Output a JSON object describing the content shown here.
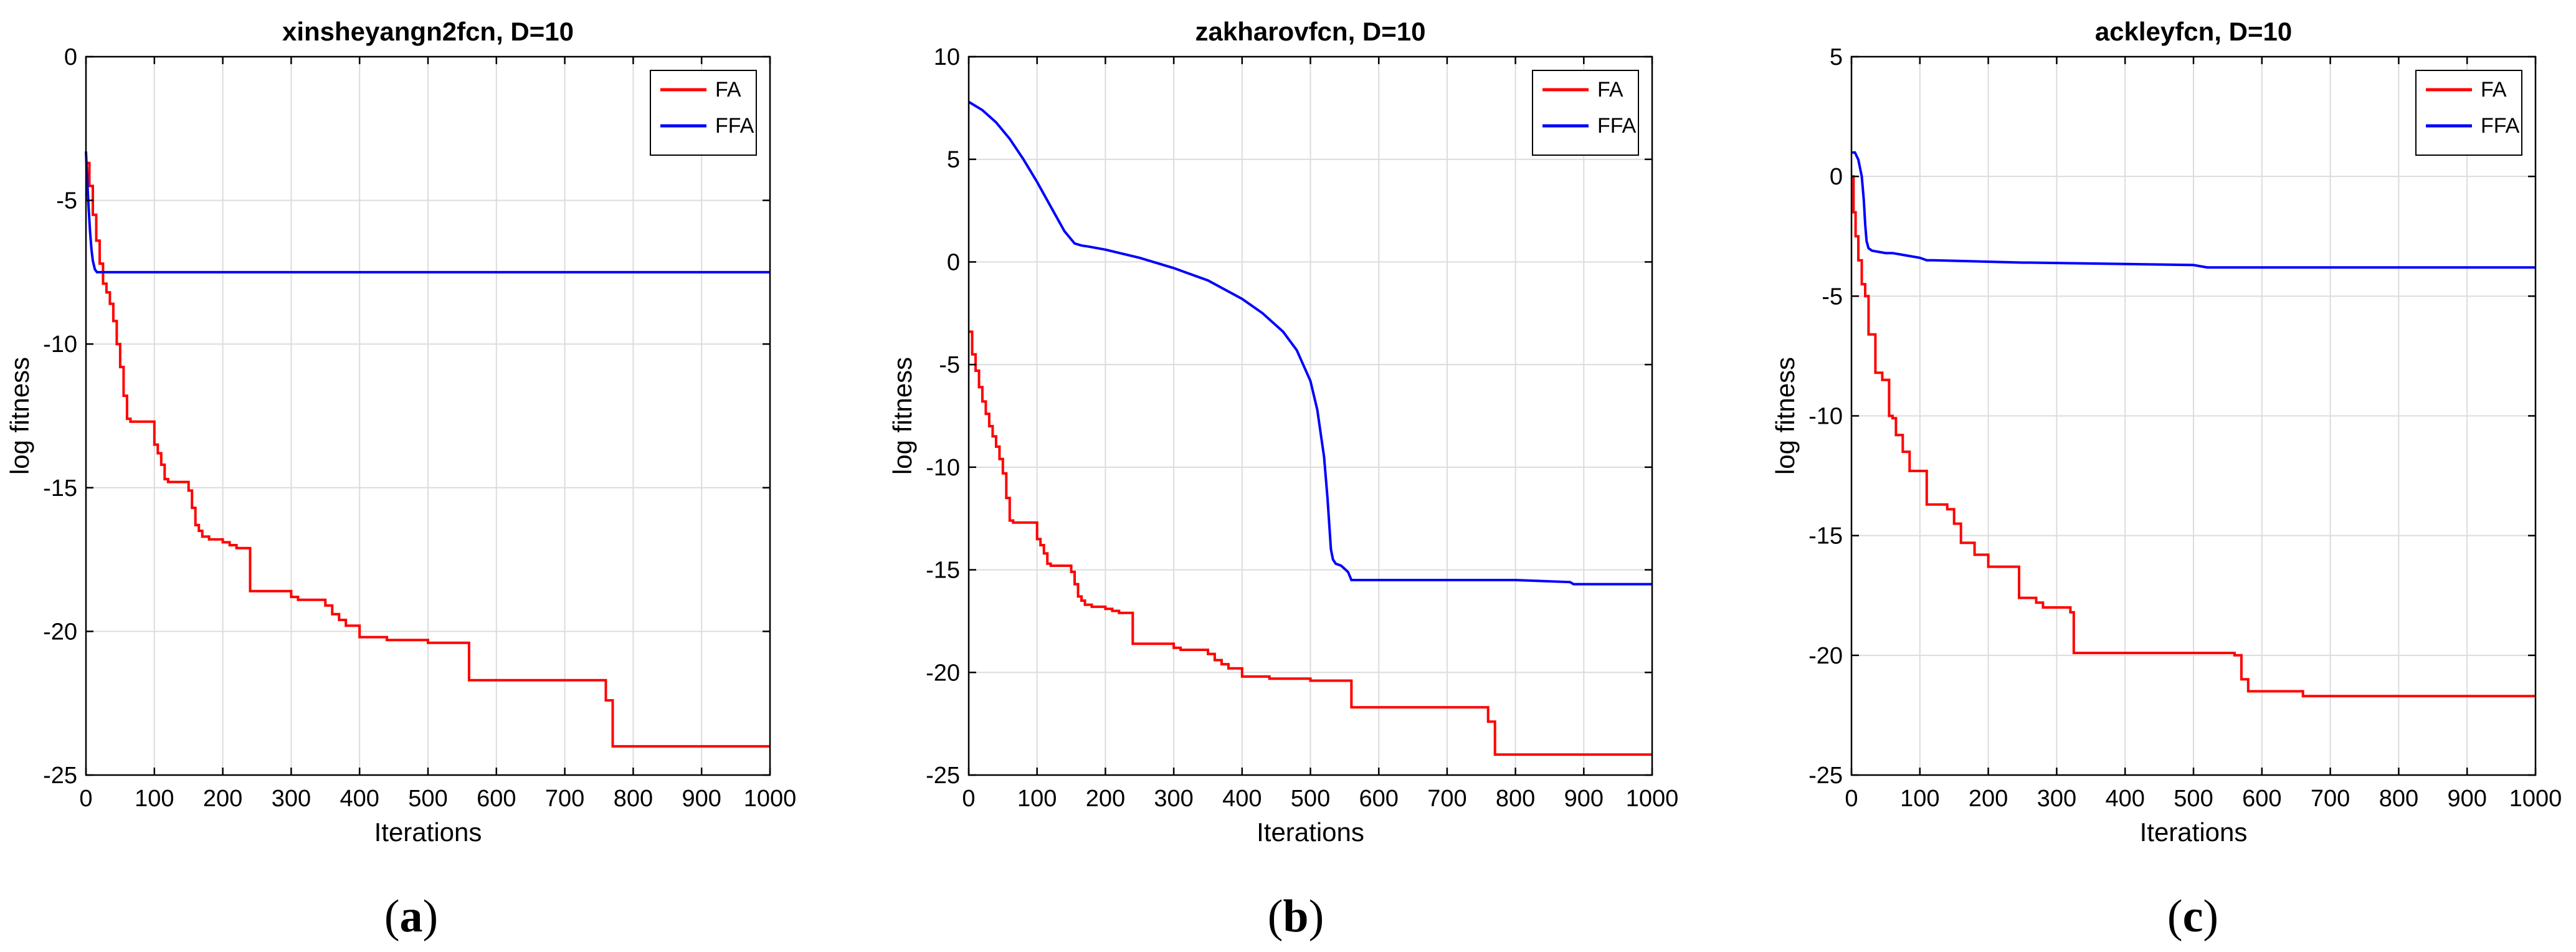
{
  "chart_data": [
    {
      "type": "line",
      "title": "xinsheyangn2fcn, D=10",
      "xlabel": "Iterations",
      "ylabel": "log fitness",
      "xlim": [
        0,
        1000
      ],
      "ylim": [
        -25,
        0
      ],
      "xticks": [
        0,
        100,
        200,
        300,
        400,
        500,
        600,
        700,
        800,
        900,
        1000
      ],
      "yticks": [
        0,
        -5,
        -10,
        -15,
        -20,
        -25
      ],
      "grid": true,
      "legend_position": "top-right",
      "caption": {
        "open": "(",
        "letter": "a",
        "close": ")"
      },
      "series": [
        {
          "name": "FA",
          "color": "#ff0000",
          "step": true,
          "x": [
            0,
            5,
            10,
            15,
            20,
            25,
            30,
            35,
            40,
            45,
            50,
            55,
            60,
            65,
            70,
            100,
            105,
            110,
            115,
            120,
            150,
            155,
            160,
            165,
            170,
            180,
            200,
            210,
            220,
            240,
            300,
            310,
            330,
            350,
            360,
            370,
            380,
            400,
            410,
            440,
            450,
            500,
            520,
            560,
            565,
            760,
            770,
            1000
          ],
          "y": [
            -3.7,
            -4.5,
            -5.5,
            -6.4,
            -7.2,
            -7.9,
            -8.2,
            -8.6,
            -9.2,
            -10.0,
            -10.8,
            -11.8,
            -12.6,
            -12.7,
            -12.7,
            -13.5,
            -13.8,
            -14.2,
            -14.7,
            -14.8,
            -15.1,
            -15.7,
            -16.3,
            -16.5,
            -16.7,
            -16.8,
            -16.9,
            -17.0,
            -17.1,
            -18.6,
            -18.8,
            -18.9,
            -18.9,
            -19.1,
            -19.4,
            -19.6,
            -19.8,
            -20.2,
            -20.2,
            -20.3,
            -20.3,
            -20.4,
            -20.4,
            -21.7,
            -21.7,
            -22.4,
            -24.0,
            -24.0
          ]
        },
        {
          "name": "FFA",
          "color": "#0000ff",
          "step": false,
          "x": [
            0,
            2,
            4,
            6,
            8,
            10,
            13,
            16,
            20,
            30,
            1000
          ],
          "y": [
            -3.3,
            -4.4,
            -5.3,
            -6.1,
            -6.7,
            -7.1,
            -7.4,
            -7.5,
            -7.5,
            -7.5,
            -7.5
          ]
        }
      ]
    },
    {
      "type": "line",
      "title": "zakharovfcn, D=10",
      "xlabel": "Iterations",
      "ylabel": "log fitness",
      "xlim": [
        0,
        1000
      ],
      "ylim": [
        -25,
        10
      ],
      "xticks": [
        0,
        100,
        200,
        300,
        400,
        500,
        600,
        700,
        800,
        900,
        1000
      ],
      "yticks": [
        10,
        5,
        0,
        -5,
        -10,
        -15,
        -20,
        -25
      ],
      "grid": true,
      "legend_position": "top-right",
      "caption": {
        "open": "(",
        "letter": "b",
        "close": ")"
      },
      "series": [
        {
          "name": "FA",
          "color": "#ff0000",
          "step": true,
          "x": [
            0,
            5,
            10,
            15,
            20,
            25,
            30,
            35,
            40,
            45,
            50,
            55,
            60,
            65,
            70,
            100,
            105,
            110,
            115,
            120,
            150,
            155,
            160,
            165,
            170,
            180,
            200,
            210,
            220,
            240,
            300,
            310,
            330,
            350,
            360,
            370,
            380,
            400,
            410,
            440,
            450,
            500,
            520,
            560,
            565,
            760,
            770,
            1000
          ],
          "y": [
            -3.4,
            -4.5,
            -5.3,
            -6.1,
            -6.8,
            -7.4,
            -8.0,
            -8.5,
            -9.0,
            -9.6,
            -10.3,
            -11.5,
            -12.6,
            -12.7,
            -12.7,
            -13.5,
            -13.8,
            -14.2,
            -14.7,
            -14.8,
            -15.1,
            -15.7,
            -16.3,
            -16.5,
            -16.7,
            -16.8,
            -16.9,
            -17.0,
            -17.1,
            -18.6,
            -18.8,
            -18.9,
            -18.9,
            -19.1,
            -19.4,
            -19.6,
            -19.8,
            -20.2,
            -20.2,
            -20.3,
            -20.3,
            -20.4,
            -20.4,
            -21.7,
            -21.7,
            -22.4,
            -24.0,
            -24.0
          ]
        },
        {
          "name": "FFA",
          "color": "#0000ff",
          "step": false,
          "x": [
            0,
            20,
            40,
            60,
            80,
            100,
            120,
            140,
            155,
            165,
            175,
            200,
            250,
            300,
            350,
            400,
            430,
            460,
            480,
            500,
            510,
            520,
            525,
            528,
            530,
            533,
            537,
            545,
            555,
            560,
            600,
            700,
            800,
            880,
            885,
            1000
          ],
          "y": [
            7.8,
            7.4,
            6.8,
            6.0,
            5.0,
            3.9,
            2.7,
            1.5,
            0.9,
            0.8,
            0.75,
            0.6,
            0.2,
            -0.3,
            -0.9,
            -1.8,
            -2.5,
            -3.4,
            -4.3,
            -5.8,
            -7.2,
            -9.5,
            -11.5,
            -13.0,
            -14.0,
            -14.5,
            -14.7,
            -14.8,
            -15.1,
            -15.5,
            -15.5,
            -15.5,
            -15.5,
            -15.6,
            -15.7,
            -15.7
          ]
        }
      ]
    },
    {
      "type": "line",
      "title": "ackleyfcn, D=10",
      "xlabel": "Iterations",
      "ylabel": "log fitness",
      "xlim": [
        0,
        1000
      ],
      "ylim": [
        -25,
        5
      ],
      "xticks": [
        0,
        100,
        200,
        300,
        400,
        500,
        600,
        700,
        800,
        900,
        1000
      ],
      "yticks": [
        5,
        0,
        -5,
        -10,
        -15,
        -20,
        -25
      ],
      "grid": true,
      "legend_position": "top-right",
      "caption": {
        "open": "(",
        "letter": "c",
        "close": ")"
      },
      "series": [
        {
          "name": "FA",
          "color": "#ff0000",
          "step": true,
          "x": [
            0,
            3,
            6,
            10,
            15,
            20,
            25,
            35,
            45,
            55,
            60,
            65,
            75,
            85,
            90,
            110,
            140,
            150,
            160,
            180,
            200,
            240,
            245,
            260,
            270,
            280,
            290,
            320,
            325,
            560,
            570,
            580,
            660,
            1000
          ],
          "y": [
            0.0,
            -1.5,
            -2.5,
            -3.5,
            -4.5,
            -5.0,
            -6.6,
            -8.2,
            -8.5,
            -10.0,
            -10.1,
            -10.8,
            -11.5,
            -12.3,
            -12.3,
            -13.7,
            -13.9,
            -14.5,
            -15.3,
            -15.8,
            -16.3,
            -16.3,
            -17.6,
            -17.6,
            -17.8,
            -18.0,
            -18.0,
            -18.2,
            -19.9,
            -20.0,
            -21.0,
            -21.5,
            -21.7,
            -21.7
          ]
        },
        {
          "name": "FFA",
          "color": "#0000ff",
          "step": false,
          "x": [
            0,
            5,
            10,
            15,
            18,
            20,
            22,
            25,
            30,
            50,
            60,
            80,
            100,
            110,
            120,
            250,
            260,
            500,
            520,
            1000
          ],
          "y": [
            1.0,
            1.0,
            0.7,
            0.0,
            -1.0,
            -2.0,
            -2.7,
            -3.0,
            -3.1,
            -3.2,
            -3.2,
            -3.3,
            -3.4,
            -3.5,
            -3.5,
            -3.6,
            -3.6,
            -3.7,
            -3.8,
            -3.8
          ]
        }
      ]
    }
  ]
}
